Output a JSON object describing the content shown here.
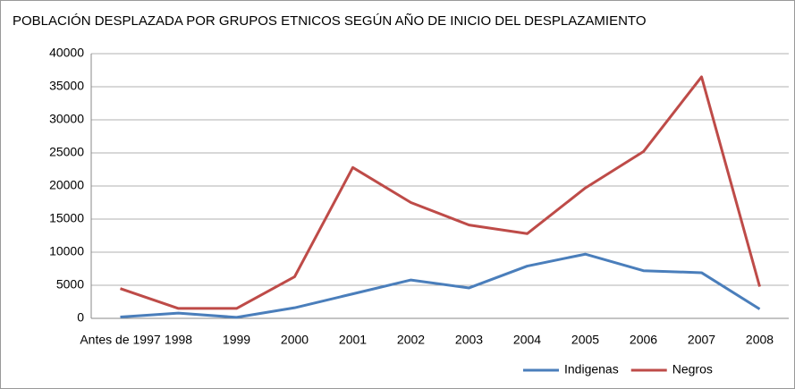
{
  "chart_data": {
    "type": "line",
    "title": "POBLACIÓN DESPLAZADA POR GRUPOS ETNICOS  SEGÚN AÑO DE INICIO DEL DESPLAZAMIENTO",
    "categories": [
      "Antes de 1997",
      "1998",
      "1999",
      "2000",
      "2001",
      "2002",
      "2003",
      "2004",
      "2005",
      "2006",
      "2007",
      "2008"
    ],
    "series": [
      {
        "name": "Indigenas",
        "color": "#4a7ebb",
        "values": [
          200,
          800,
          150,
          1600,
          3700,
          5800,
          4600,
          7900,
          9700,
          7200,
          6900,
          1400
        ]
      },
      {
        "name": "Negros",
        "color": "#be4b48",
        "values": [
          4500,
          1500,
          1500,
          6300,
          22800,
          17500,
          14100,
          12800,
          19700,
          25200,
          36500,
          4800
        ]
      }
    ],
    "ylim": [
      0,
      40000
    ],
    "yticks": [
      0,
      5000,
      10000,
      15000,
      20000,
      25000,
      30000,
      35000,
      40000
    ],
    "grid": true,
    "legend": "bottom-right"
  }
}
